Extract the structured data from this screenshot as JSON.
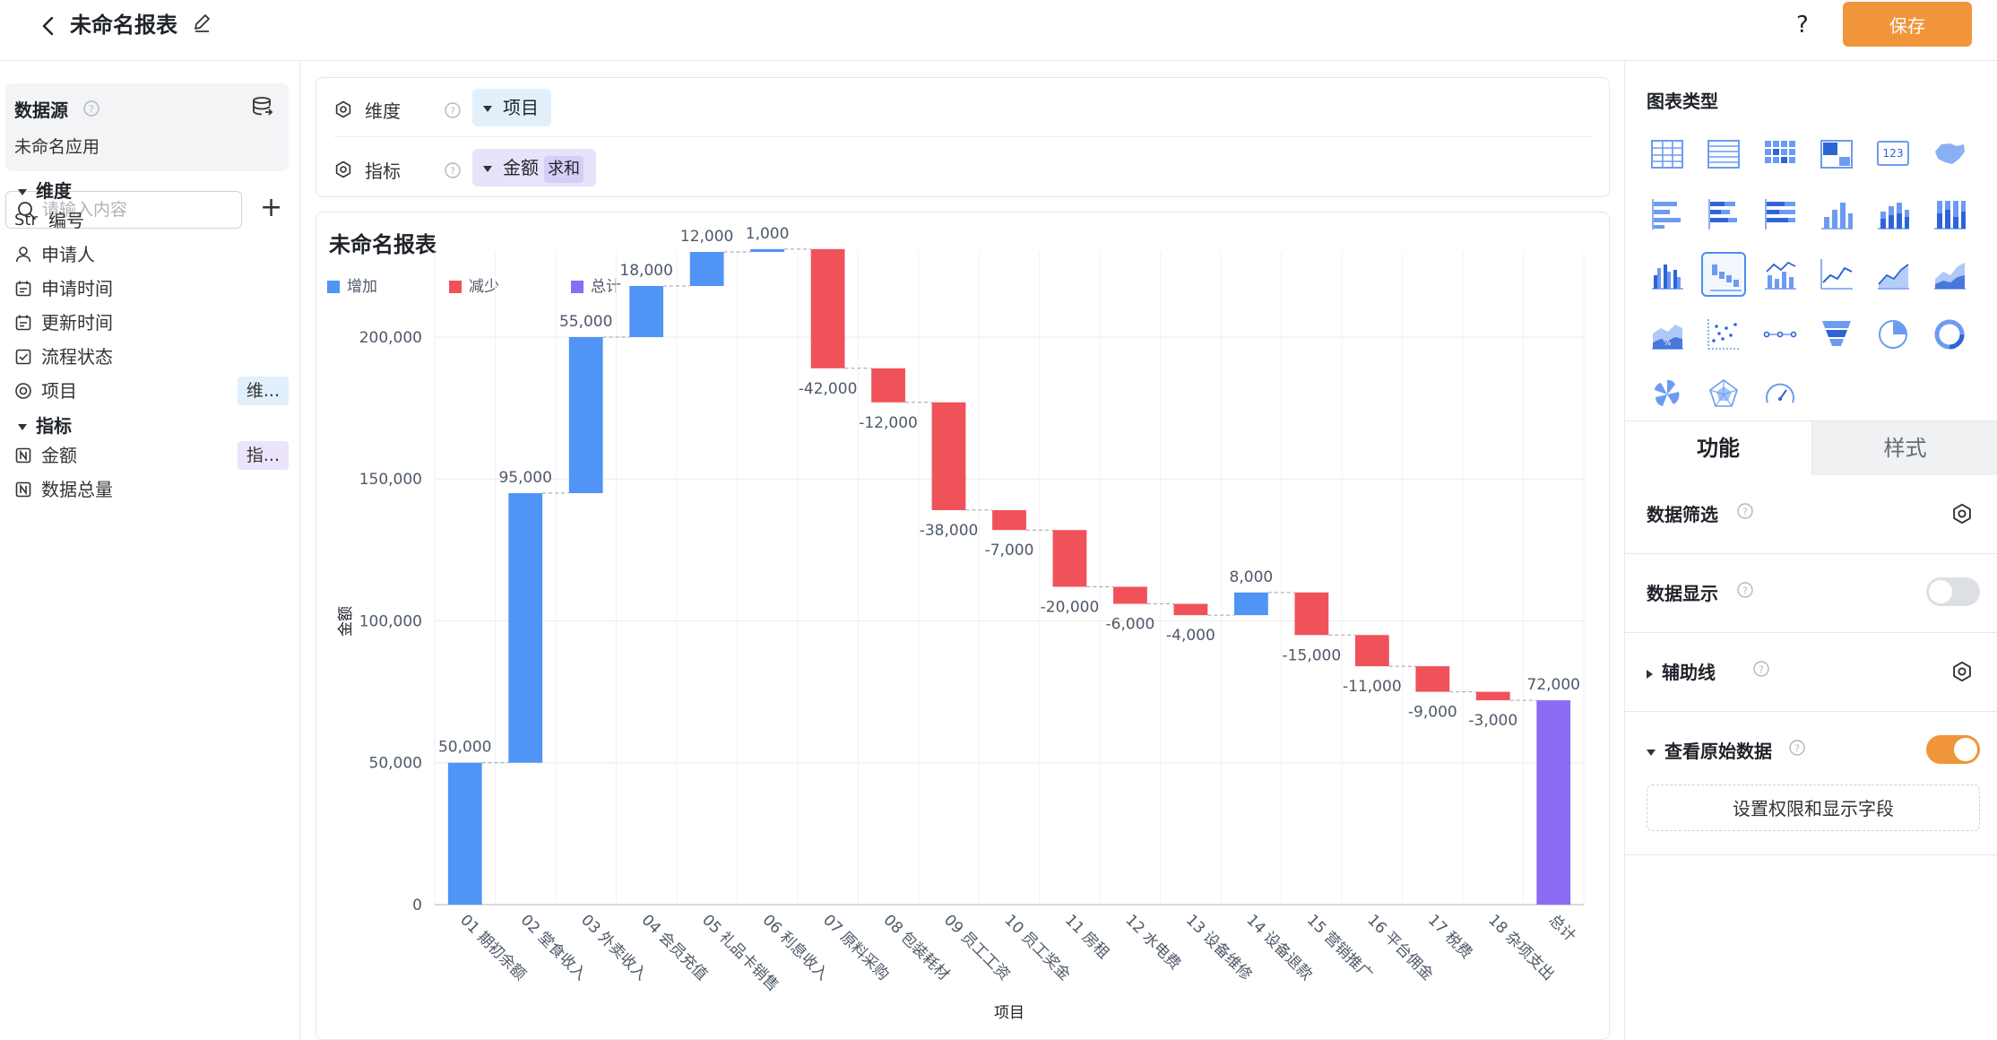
{
  "header": {
    "title": "未命名报表",
    "help": "?",
    "save_label": "保存"
  },
  "sidebar": {
    "datasource_title": "数据源",
    "datasource_app": "未命名应用",
    "search_placeholder": "请输入内容",
    "add": "+",
    "dimension_section": "维度",
    "dimensions": [
      {
        "label": "编号",
        "icon": "string-type-icon",
        "type_text": "Str"
      },
      {
        "label": "申请人",
        "icon": "user-icon"
      },
      {
        "label": "申请时间",
        "icon": "calendar-icon"
      },
      {
        "label": "更新时间",
        "icon": "calendar-icon"
      },
      {
        "label": "流程状态",
        "icon": "checkbox-icon"
      },
      {
        "label": "项目",
        "icon": "radio-icon",
        "tag": "维..."
      }
    ],
    "measure_section": "指标",
    "measures": [
      {
        "label": "金额",
        "icon": "number-type-icon",
        "tag": "指..."
      },
      {
        "label": "数据总量",
        "icon": "number-type-icon"
      }
    ]
  },
  "config": {
    "dimension_label": "维度",
    "dimension_value": "项目",
    "measure_label": "指标",
    "measure_value": "金额",
    "measure_agg": "求和"
  },
  "chart_card": {
    "title": "未命名报表"
  },
  "chart_data": {
    "type": "waterfall",
    "title": "未命名报表",
    "xlabel": "项目",
    "ylabel": "金额",
    "ylim": [
      0,
      230000
    ],
    "yticks": [
      0,
      50000,
      100000,
      150000,
      200000
    ],
    "ytick_labels": [
      "0",
      "50,000",
      "100,000",
      "150,000",
      "200,000"
    ],
    "legend": [
      {
        "name": "增加",
        "color": "#5094f5"
      },
      {
        "name": "减少",
        "color": "#f0525a"
      },
      {
        "name": "总计",
        "color": "#8c6cf5"
      }
    ],
    "legend_position": "top-left",
    "grid": true,
    "categories": [
      "01 期初余额",
      "02 堂食收入",
      "03 外卖收入",
      "04 会员充值",
      "05 礼品卡销售",
      "06 利息收入",
      "07 原料采购",
      "08 包装耗材",
      "09 员工工资",
      "10 员工奖金",
      "11 房租",
      "12 水电费",
      "13 设备维修",
      "14 设备退款",
      "15 营销推广",
      "16 平台佣金",
      "17 税费",
      "18 杂项支出",
      "总计"
    ],
    "values": [
      50000,
      95000,
      55000,
      18000,
      12000,
      1000,
      -42000,
      -12000,
      -38000,
      -7000,
      -20000,
      -6000,
      -4000,
      8000,
      -15000,
      -11000,
      -9000,
      -3000,
      72000
    ],
    "data_labels": [
      "50,000",
      "95,000",
      "55,000",
      "18,000",
      "12,000",
      "1,000",
      "-42,000",
      "-12,000",
      "-38,000",
      "-7,000",
      "-20,000",
      "-6,000",
      "-4,000",
      "8,000",
      "-15,000",
      "-11,000",
      "-9,000",
      "-3,000",
      "72,000"
    ],
    "total_index": 18
  },
  "chart_types": {
    "title": "图表类型",
    "icons": [
      "table-icon",
      "detail-table-icon",
      "pivot-table-icon",
      "cross-table-icon",
      "indicator-card-icon",
      "map-icon",
      "bar-horizontal-icon",
      "stacked-bar-horizontal-icon",
      "percent-bar-horizontal-icon",
      "column-icon",
      "stacked-column-icon",
      "percent-column-icon",
      "grouped-column-icon",
      "waterfall-icon",
      "column-line-icon",
      "line-icon",
      "area-icon",
      "stacked-area-icon",
      "percent-area-icon",
      "scatter-icon",
      "dot-line-icon",
      "funnel-icon",
      "pie-icon",
      "ring-icon",
      "rose-icon",
      "radar-icon",
      "gauge-icon"
    ],
    "selected": 13
  },
  "panel": {
    "tab_function": "功能",
    "tab_style": "样式",
    "data_filter": "数据筛选",
    "data_display": "数据显示",
    "aux_line": "辅助线",
    "view_raw": "查看原始数据",
    "permission_btn": "设置权限和显示字段"
  }
}
